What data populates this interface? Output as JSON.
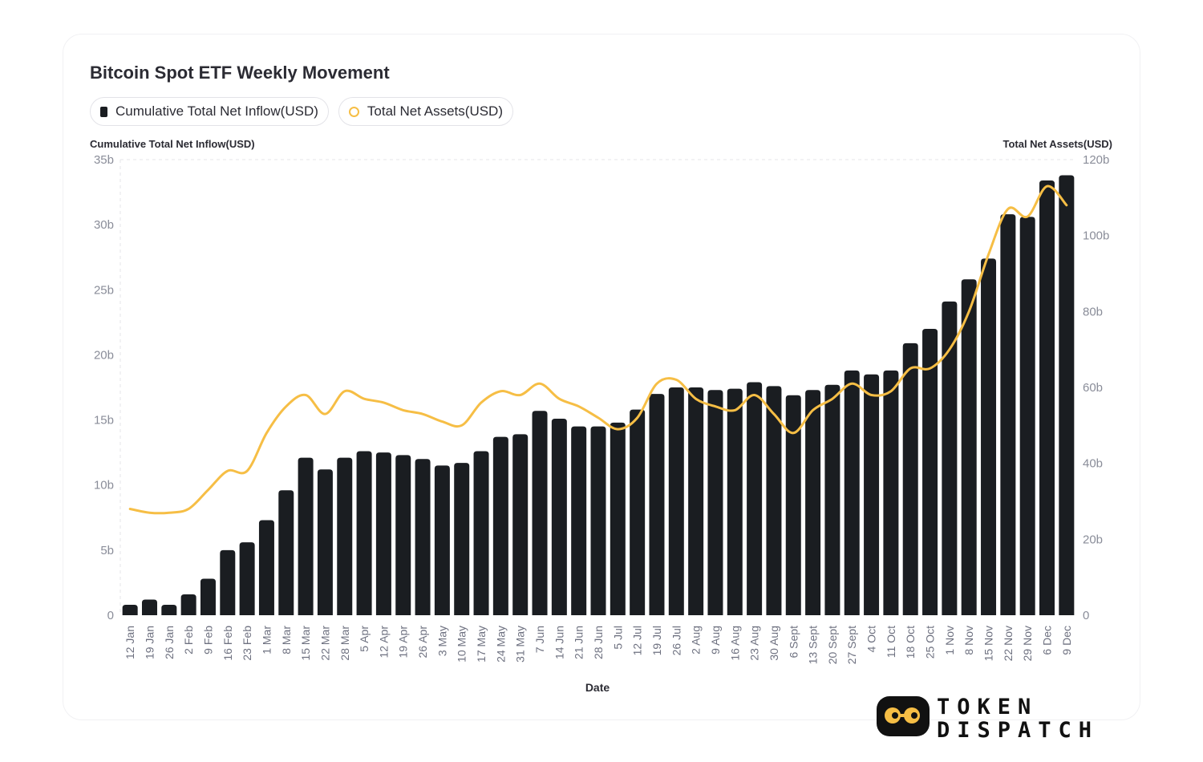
{
  "chart_data": {
    "type": "bar",
    "title": "Bitcoin Spot ETF Weekly Movement",
    "legend": [
      "Cumulative Total Net Inflow(USD)",
      "Total Net Assets(USD)"
    ],
    "legend_placement": "top-left",
    "xlabel": "Date",
    "ylabel_left": "Cumulative Total Net Inflow(USD)",
    "ylabel_right": "Total Net Assets(USD)",
    "ylim_left": [
      0,
      35
    ],
    "ylim_right": [
      0,
      120
    ],
    "yticks_left": [
      "0",
      "5b",
      "10b",
      "15b",
      "20b",
      "25b",
      "30b",
      "35b"
    ],
    "yticks_right": [
      "0",
      "20b",
      "40b",
      "60b",
      "80b",
      "100b",
      "120b"
    ],
    "categories": [
      "12 Jan",
      "19 Jan",
      "26 Jan",
      "2 Feb",
      "9 Feb",
      "16 Feb",
      "23 Feb",
      "1 Mar",
      "8 Mar",
      "15 Mar",
      "22 Mar",
      "28 Mar",
      "5 Apr",
      "12 Apr",
      "19 Apr",
      "26 Apr",
      "3 May",
      "10 May",
      "17 May",
      "24 May",
      "31 May",
      "7 Jun",
      "14 Jun",
      "21 Jun",
      "28 Jun",
      "5 Jul",
      "12 Jul",
      "19 Jul",
      "26 Jul",
      "2 Aug",
      "9 Aug",
      "16 Aug",
      "23 Aug",
      "30 Aug",
      "6 Sept",
      "13 Sept",
      "20 Sept",
      "27 Sept",
      "4 Oct",
      "11 Oct",
      "18 Oct",
      "25 Oct",
      "1 Nov",
      "8 Nov",
      "15 Nov",
      "22 Nov",
      "29 Nov",
      "6 Dec",
      "9 Dec"
    ],
    "series": [
      {
        "name": "Cumulative Total Net Inflow(USD)",
        "type": "bar",
        "axis": "left",
        "color": "#1a1d21",
        "values": [
          0.8,
          1.2,
          0.8,
          1.6,
          2.8,
          5.0,
          5.6,
          7.3,
          9.6,
          12.1,
          11.2,
          12.1,
          12.6,
          12.5,
          12.3,
          12.0,
          11.5,
          11.7,
          12.6,
          13.7,
          13.9,
          15.7,
          15.1,
          14.5,
          14.5,
          14.8,
          15.8,
          17.0,
          17.5,
          17.5,
          17.3,
          17.4,
          17.9,
          17.6,
          16.9,
          17.3,
          17.7,
          18.8,
          18.5,
          18.8,
          20.9,
          22.0,
          24.1,
          25.8,
          27.4,
          30.8,
          30.6,
          33.4,
          33.8
        ]
      },
      {
        "name": "Total Net Assets(USD)",
        "type": "line",
        "axis": "right",
        "color": "#f6be45",
        "values": [
          28,
          27,
          27,
          28,
          33,
          38,
          38,
          48,
          55,
          58,
          53,
          59,
          57,
          56,
          54,
          53,
          51,
          50,
          56,
          59,
          58,
          61,
          57,
          55,
          52,
          49,
          52,
          61,
          62,
          57,
          55,
          54,
          58,
          53,
          48,
          54,
          57,
          61,
          58,
          59,
          65,
          65,
          70,
          80,
          95,
          107,
          105,
          113,
          108
        ]
      }
    ]
  },
  "branding": {
    "logo_line1": "TOKEN",
    "logo_line2": "DISPATCH"
  }
}
